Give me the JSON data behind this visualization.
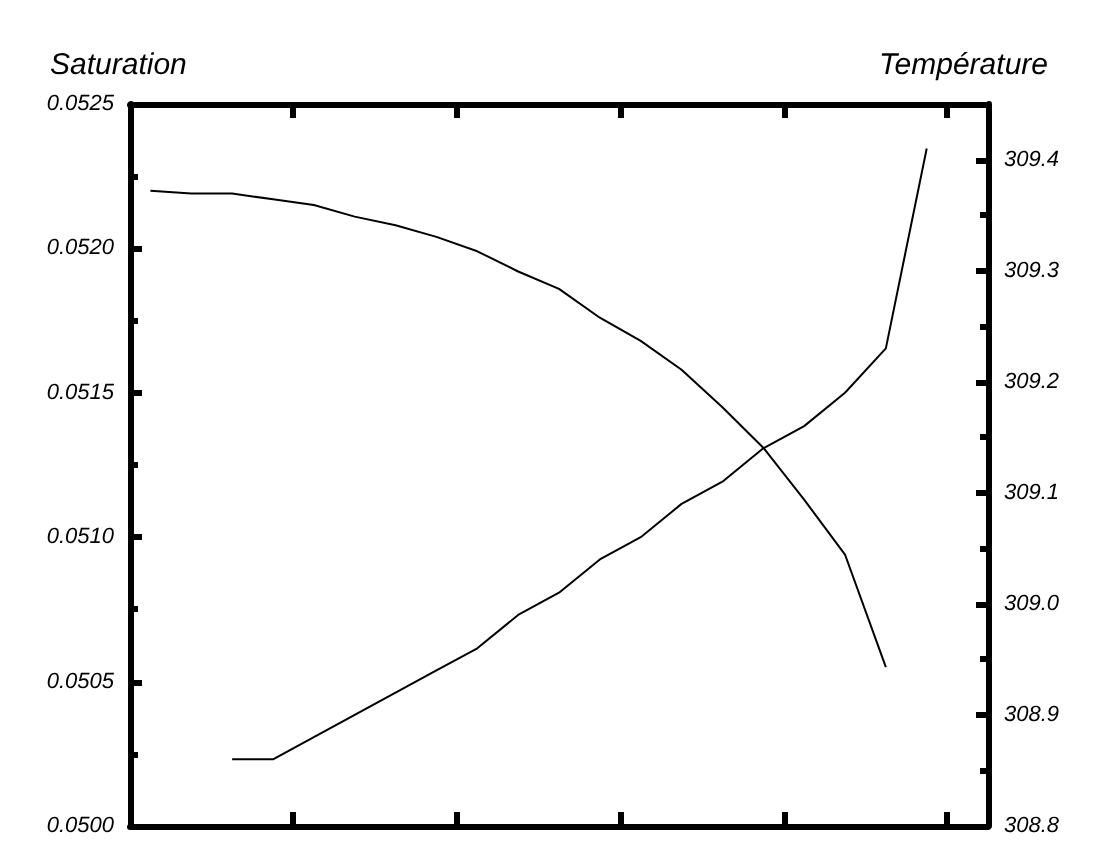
{
  "chart_data": {
    "type": "line",
    "ylabel": "Saturation",
    "y2label": "Température",
    "categories": [
      null,
      null,
      null,
      null,
      null,
      null,
      null,
      null,
      null,
      null,
      null,
      null,
      null,
      null,
      null,
      null,
      null,
      null,
      null,
      null,
      null
    ],
    "series": [
      {
        "color": "#000000",
        "values": [
          0.0522,
          0.05219,
          0.05219,
          0.05217,
          0.05215,
          0.05211,
          0.05208,
          0.05204,
          0.05199,
          0.05192,
          0.05186,
          0.05176,
          0.05168,
          0.05158,
          0.05145,
          0.05131,
          0.05113,
          0.05094,
          0.05055,
          null,
          null
        ]
      },
      {
        "color": "#000000",
        "axis": "y2",
        "values": [
          null,
          null,
          308.86,
          308.86,
          308.88,
          308.9,
          308.92,
          308.94,
          308.96,
          308.99,
          309.01,
          309.04,
          309.06,
          309.09,
          309.11,
          309.14,
          309.16,
          309.19,
          309.23,
          309.41,
          null
        ]
      }
    ],
    "ylim": [
      0.05,
      0.0525
    ],
    "yticks": [
      {
        "value": 0.05,
        "label": "0.0500"
      },
      0.0505,
      {
        "value": 0.051,
        "label": "0.0510"
      },
      0.0515,
      {
        "value": 0.052,
        "label": "0.0520"
      },
      0.0525
    ],
    "y2lim": [
      308.8,
      309.45
    ],
    "y2ticks": [
      308.8,
      308.9,
      {
        "value": 309.0,
        "label": "309.0"
      },
      309.1,
      309.2,
      309.3,
      309.4
    ],
    "grid": false,
    "marker": "none",
    "line_style": "solid"
  }
}
